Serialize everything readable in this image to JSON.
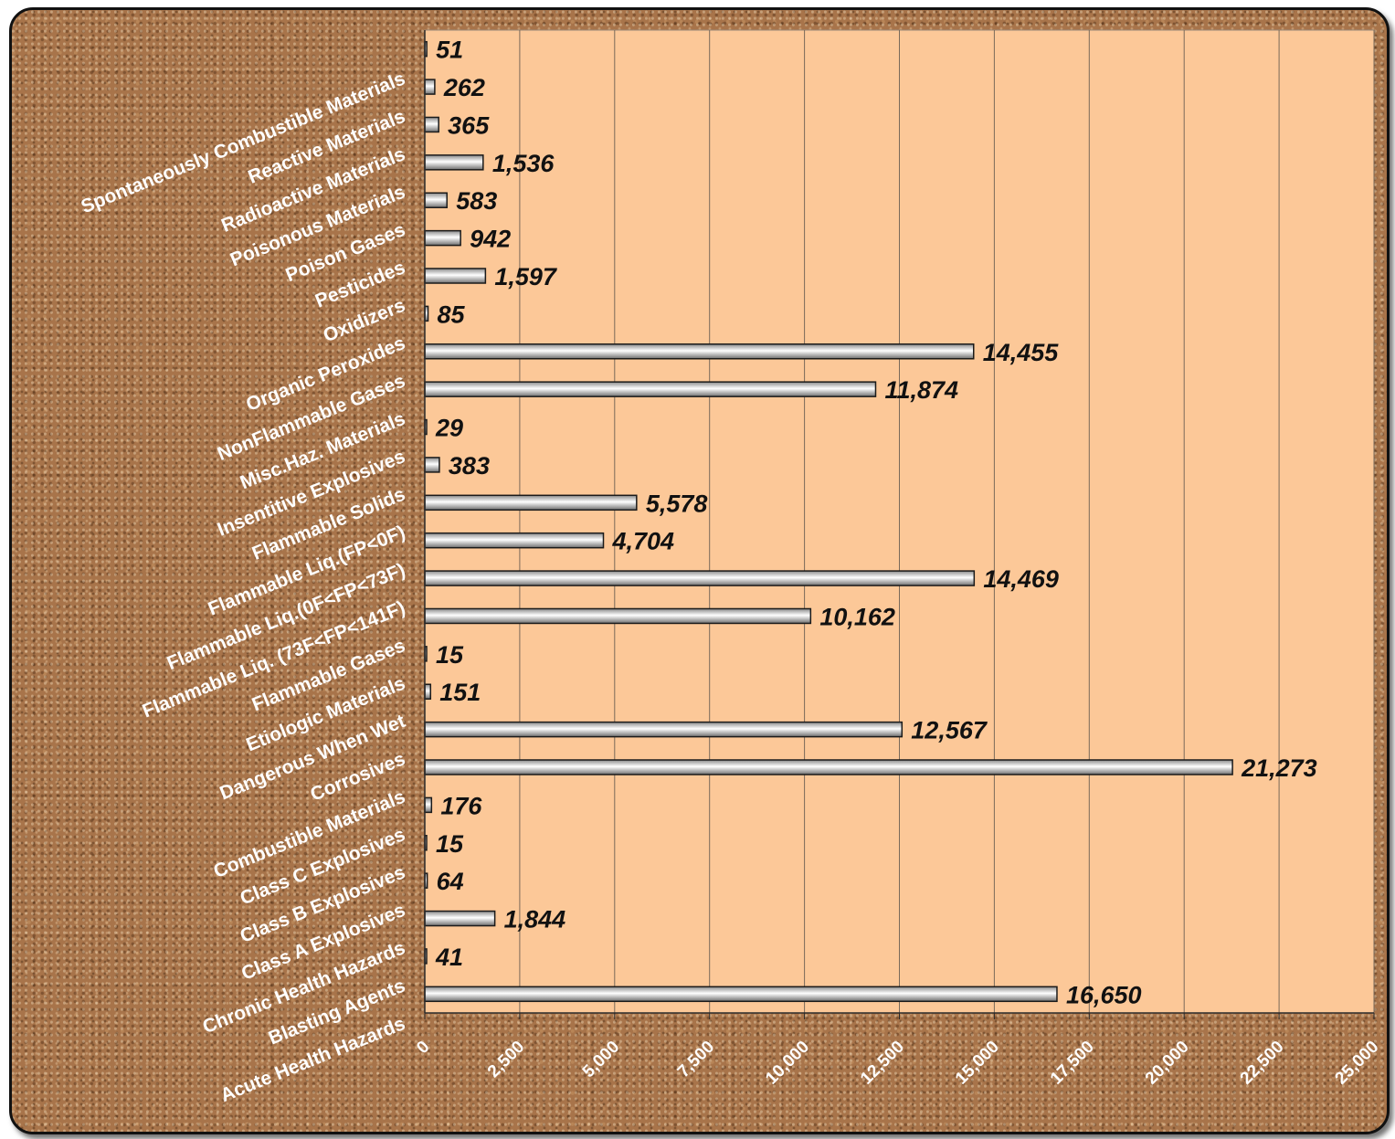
{
  "chart_data": {
    "type": "bar",
    "orientation": "horizontal",
    "categories": [
      "Acute Health Hazards",
      "Blasting Agents",
      "Chronic Health Hazards",
      "Class A Explosives",
      "Class B Explosives",
      "Class C Explosives",
      "Combustible Materials",
      "Corrosives",
      "Dangerous When Wet",
      "Etiologic Materials",
      "Flammable Gases",
      "Flammable Liq. (73F<FP<141F)",
      "Flammable Liq.(0F<FP<73F)",
      "Flammable Liq.(FP<0F)",
      "Flammable Solids",
      "Insentitive Explosives",
      "Misc.Haz. Materials",
      "NonFlammable Gases",
      "Organic Peroxides",
      "Oxidizers",
      "Pesticides",
      "Poison Gases",
      "Poisonous Materials",
      "Radioactive Materials",
      "Reactive Materials",
      "Spontaneously Combustible Materials"
    ],
    "values": [
      16650,
      41,
      1844,
      64,
      15,
      176,
      21273,
      12567,
      151,
      15,
      10162,
      14469,
      4704,
      5578,
      383,
      29,
      11874,
      14455,
      85,
      1597,
      942,
      583,
      1536,
      365,
      262,
      51
    ],
    "data_labels": [
      "16,650",
      "41",
      "1,844",
      "64",
      "15",
      "176",
      "21,273",
      "12,567",
      "151",
      "15",
      "10,162",
      "14,469",
      "4,704",
      "5,578",
      "383",
      "29",
      "11,874",
      "14,455",
      "85",
      "1,597",
      "942",
      "583",
      "1,536",
      "365",
      "262",
      "51"
    ],
    "xlim": [
      0,
      25000
    ],
    "x_ticks": [
      0,
      2500,
      5000,
      7500,
      10000,
      12500,
      15000,
      17500,
      20000,
      22500,
      25000
    ],
    "x_tick_labels": [
      "0",
      "2,500",
      "5,000",
      "7,500",
      "10,000",
      "12,500",
      "15,000",
      "17,500",
      "20,000",
      "22,500",
      "25,000"
    ],
    "grid": "vertical",
    "legend": "none",
    "title": "",
    "xlabel": "",
    "ylabel": ""
  },
  "colors": {
    "plot_background": "#fcc898",
    "bar_fill_light": "#ffffff",
    "bar_fill_dark": "#8a8a8a",
    "bar_stroke": "#1a1a1a",
    "gridline": "#7a6a5a",
    "frame_background": "#a8744a",
    "label_text": "#ffffff",
    "data_label_text": "#111111"
  }
}
